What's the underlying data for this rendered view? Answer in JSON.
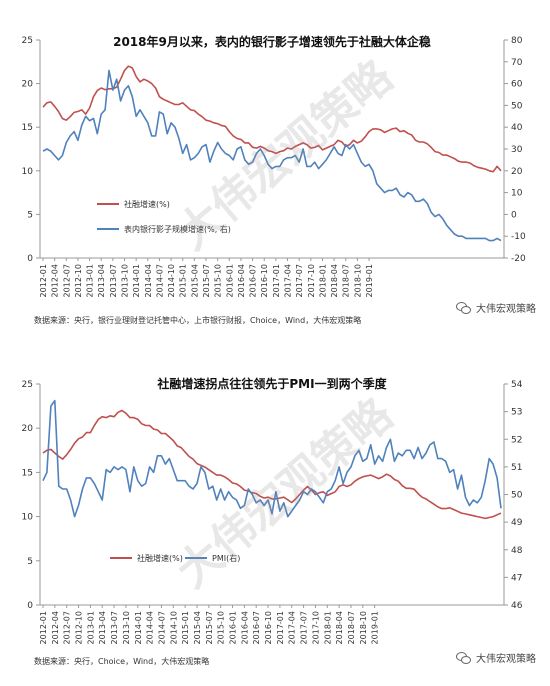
{
  "chart_data": [
    {
      "type": "line",
      "title": "2018年9月以来，表内的银行影子增速领先于社融大体企稳",
      "x_ticks": [
        "2012-01",
        "2012-04",
        "2012-07",
        "2012-10",
        "2013-01",
        "2013-04",
        "2013-07",
        "2013-10",
        "2014-01",
        "2014-04",
        "2014-07",
        "2014-10",
        "2015-01",
        "2015-04",
        "2015-07",
        "2015-10",
        "2016-01",
        "2016-04",
        "2016-07",
        "2016-10",
        "2017-01",
        "2017-04",
        "2017-07",
        "2017-10",
        "2018-01",
        "2018-04",
        "2018-07",
        "2018-10",
        "2019-01"
      ],
      "y_left_ticks": [
        "0",
        "5",
        "10",
        "15",
        "20",
        "25"
      ],
      "y_right_ticks": [
        "-20",
        "-10",
        "0",
        "10",
        "20",
        "30",
        "40",
        "50",
        "60",
        "70",
        "80"
      ],
      "ylim_left": [
        0,
        25
      ],
      "ylim_right": [
        -20,
        80
      ],
      "legend_position": "left-middle",
      "series": [
        {
          "name": "社融增速(%)",
          "axis": "left",
          "color": "#c0504d",
          "values": [
            17.3,
            17.8,
            17.9,
            17.4,
            16.8,
            16.0,
            15.8,
            16.2,
            16.7,
            16.8,
            17.0,
            16.5,
            17.2,
            18.5,
            19.2,
            19.5,
            19.3,
            19.4,
            19.4,
            19.6,
            20.5,
            21.5,
            22.0,
            21.8,
            20.8,
            20.2,
            20.5,
            20.3,
            20.0,
            19.5,
            18.5,
            18.2,
            18.0,
            17.8,
            17.6,
            17.6,
            17.8,
            17.4,
            17.0,
            16.9,
            16.5,
            16.2,
            15.8,
            15.7,
            15.5,
            15.4,
            15.2,
            15.1,
            14.5,
            14.0,
            13.7,
            13.6,
            13.2,
            13.2,
            12.7,
            12.6,
            12.8,
            12.6,
            12.3,
            12.2,
            12.0,
            12.2,
            12.3,
            12.6,
            12.5,
            12.8,
            13.0,
            13.2,
            13.0,
            12.6,
            12.7,
            12.9,
            12.4,
            12.6,
            12.8,
            13.0,
            13.5,
            13.3,
            12.8,
            13.0,
            13.5,
            13.2,
            13.4,
            13.9,
            14.5,
            14.8,
            14.8,
            14.7,
            14.4,
            14.6,
            14.8,
            14.9,
            14.5,
            14.6,
            14.3,
            14.1,
            13.5,
            13.3,
            13.3,
            13.1,
            12.7,
            12.2,
            12.1,
            11.8,
            11.8,
            11.6,
            11.4,
            11.1,
            11.0,
            11.0,
            10.9,
            10.6,
            10.4,
            10.3,
            10.2,
            10.0,
            9.9,
            10.5,
            10.0
          ]
        },
        {
          "name": "表内银行影子规模增速(%, 右)",
          "axis": "right",
          "color": "#4f81bd",
          "values": [
            29,
            30,
            29,
            27,
            25,
            27,
            33,
            36,
            38,
            34,
            41,
            45,
            43,
            44,
            37,
            46,
            48,
            66,
            57,
            62,
            52,
            57,
            59,
            54,
            45,
            48,
            45,
            42,
            36,
            36,
            47,
            46,
            37,
            42,
            40,
            35,
            28,
            32,
            25,
            26,
            28,
            31,
            32,
            24,
            29,
            33,
            30,
            28,
            27,
            25,
            30,
            31,
            25,
            23,
            24,
            28,
            30,
            27,
            23,
            21,
            22,
            22,
            25,
            26,
            26,
            27,
            24,
            30,
            22,
            22,
            24,
            21,
            23,
            25,
            28,
            31,
            28,
            27,
            32,
            30,
            32,
            28,
            24,
            22,
            23,
            20,
            14,
            12,
            10,
            11,
            11,
            12,
            9,
            8,
            10,
            9,
            6,
            6,
            7,
            5,
            1,
            -1,
            0,
            -2,
            -5,
            -7,
            -9,
            -10,
            -10,
            -11,
            -11,
            -11,
            -11,
            -11,
            -11,
            -12,
            -12,
            -11,
            -12
          ]
        }
      ]
    },
    {
      "type": "line",
      "title": "社融增速拐点往往领先于PMI一到两个季度",
      "x_ticks": [
        "2012-01",
        "2012-04",
        "2012-07",
        "2012-10",
        "2013-01",
        "2013-04",
        "2013-07",
        "2013-10",
        "2014-01",
        "2014-04",
        "2014-07",
        "2014-10",
        "2015-01",
        "2015-04",
        "2015-07",
        "2015-10",
        "2016-01",
        "2016-04",
        "2016-07",
        "2016-10",
        "2017-01",
        "2017-04",
        "2017-07",
        "2017-10",
        "2018-01",
        "2018-04",
        "2018-07",
        "2018-10",
        "2019-01"
      ],
      "y_left_ticks": [
        "0",
        "5",
        "10",
        "15",
        "20",
        "25"
      ],
      "y_right_ticks": [
        "46",
        "47",
        "48",
        "49",
        "50",
        "51",
        "52",
        "53",
        "54"
      ],
      "ylim_left": [
        0,
        25
      ],
      "ylim_right": [
        46,
        54
      ],
      "legend_position": "bottom-center",
      "series": [
        {
          "name": "社融增速(%)",
          "axis": "left",
          "color": "#c0504d",
          "values": [
            17.2,
            17.5,
            17.6,
            17.2,
            16.8,
            16.5,
            17.0,
            17.6,
            18.3,
            18.8,
            19.0,
            19.5,
            19.5,
            20.3,
            21.0,
            21.3,
            21.2,
            21.4,
            21.3,
            21.8,
            22.0,
            21.7,
            21.2,
            21.2,
            21.0,
            20.5,
            20.3,
            20.3,
            19.9,
            19.8,
            19.4,
            19.4,
            19.0,
            18.6,
            18.0,
            17.8,
            17.3,
            16.8,
            16.5,
            16.0,
            15.8,
            15.6,
            15.3,
            15.0,
            14.7,
            14.7,
            14.5,
            14.2,
            13.8,
            13.7,
            13.4,
            13.0,
            12.9,
            12.7,
            12.6,
            12.3,
            12.1,
            12.2,
            12.0,
            12.0,
            12.1,
            12.2,
            11.9,
            11.6,
            12.0,
            12.5,
            13.0,
            13.4,
            13.0,
            12.5,
            12.7,
            12.8,
            12.4,
            12.6,
            12.8,
            13.4,
            13.6,
            13.4,
            13.6,
            14.0,
            14.3,
            14.5,
            14.6,
            14.7,
            14.5,
            14.3,
            14.5,
            14.8,
            14.6,
            14.2,
            14.0,
            13.5,
            13.2,
            13.2,
            13.1,
            12.6,
            12.2,
            12.0,
            11.7,
            11.4,
            11.1,
            10.9,
            10.9,
            11.0,
            10.8,
            10.6,
            10.4,
            10.3,
            10.2,
            10.1,
            10.0,
            9.9,
            9.8,
            9.9,
            10.0,
            10.2,
            10.4
          ]
        },
        {
          "name": "PMI(右)",
          "axis": "right",
          "color": "#4f81bd",
          "values": [
            50.5,
            50.8,
            53.2,
            53.4,
            50.3,
            50.2,
            50.2,
            49.8,
            49.2,
            49.6,
            50.2,
            50.6,
            50.6,
            50.4,
            50.1,
            49.8,
            50.9,
            50.8,
            51.0,
            50.9,
            51.0,
            50.9,
            50.1,
            51.0,
            50.5,
            50.3,
            50.4,
            51.0,
            50.8,
            51.4,
            51.4,
            51.1,
            51.3,
            50.9,
            50.5,
            50.5,
            50.5,
            50.3,
            50.2,
            50.4,
            51.0,
            50.8,
            50.2,
            50.3,
            49.8,
            50.2,
            49.8,
            50.1,
            49.9,
            49.8,
            49.5,
            49.6,
            50.2,
            50.0,
            49.7,
            49.8,
            49.6,
            49.8,
            49.3,
            50.1,
            49.4,
            49.7,
            49.2,
            49.4,
            49.6,
            49.8,
            50.1,
            50.0,
            50.2,
            50.1,
            49.9,
            49.7,
            50.1,
            50.2,
            50.5,
            51.0,
            50.4,
            50.8,
            51.0,
            51.4,
            51.6,
            51.2,
            51.3,
            51.8,
            51.1,
            51.4,
            51.2,
            51.7,
            52.0,
            51.2,
            51.5,
            51.4,
            51.6,
            51.6,
            51.3,
            51.7,
            51.3,
            51.5,
            51.8,
            51.9,
            51.3,
            51.3,
            51.2,
            50.8,
            50.9,
            50.2,
            50.7,
            49.9,
            49.6,
            49.8,
            49.7,
            49.9,
            50.5,
            51.3,
            51.1,
            50.6,
            49.5
          ]
        }
      ]
    }
  ],
  "panel1": {
    "source": "数据来源：央行，银行业理财登记托管中心，上市银行财报，Choice，Wind，大伟宏观策略",
    "brand": "大伟宏观策略",
    "watermark": "大伟宏观策略"
  },
  "panel2": {
    "source": "数据来源：央行，Choice，Wind，大伟宏观策略",
    "brand": "大伟宏观策略",
    "watermark": "大伟宏观策略"
  }
}
